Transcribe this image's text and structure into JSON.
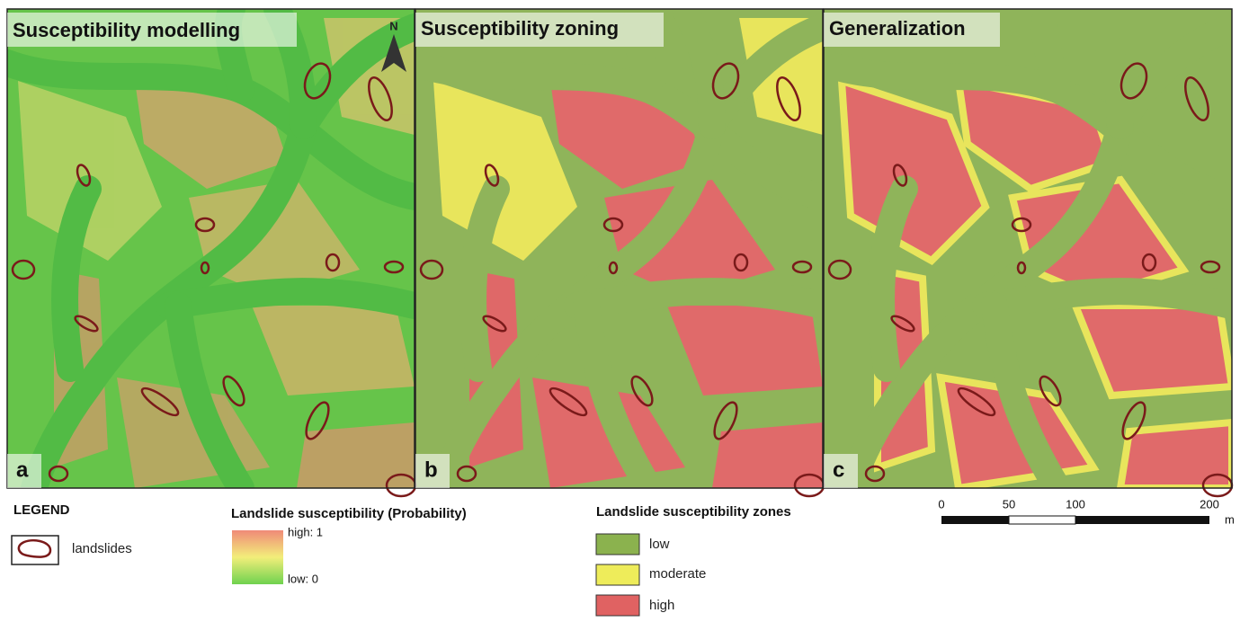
{
  "panels": [
    {
      "title": "Susceptibility modelling",
      "letter": "a"
    },
    {
      "title": "Susceptibility zoning",
      "letter": "b"
    },
    {
      "title": "Generalization",
      "letter": "c"
    }
  ],
  "north": "N",
  "legend": {
    "title": "LEGEND",
    "landslides": "landslides",
    "probability": {
      "title": "Landslide susceptibility (Probability)",
      "high": "high: 1",
      "low": "low: 0"
    },
    "zones": {
      "title": "Landslide susceptibility zones",
      "items": [
        "low",
        "moderate",
        "high"
      ]
    }
  },
  "scale_bar": {
    "labels": [
      0,
      50,
      100,
      200
    ],
    "unit": "m"
  }
}
